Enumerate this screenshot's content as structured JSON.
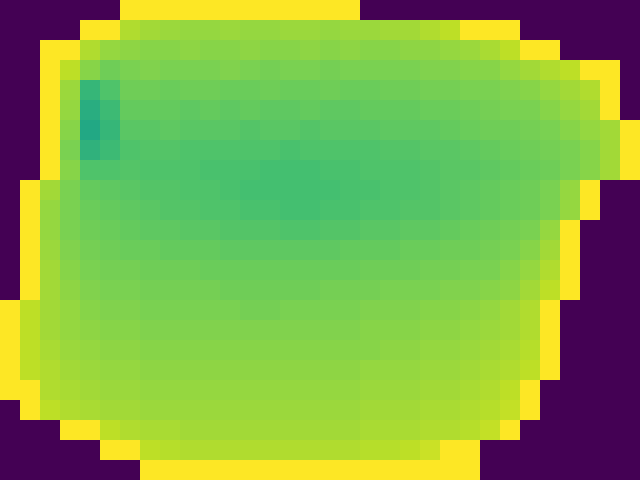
{
  "chart_data": {
    "type": "heatmap",
    "tick_labels": false,
    "zlim": [
      0,
      100
    ],
    "cells": [
      [
        0,
        0,
        0,
        0,
        0,
        0,
        100,
        100,
        100,
        100,
        100,
        100,
        100,
        100,
        100,
        100,
        100,
        100,
        0,
        0,
        0,
        0,
        0,
        0,
        0,
        0,
        0,
        0,
        0,
        0,
        0,
        0
      ],
      [
        0,
        0,
        0,
        0,
        100,
        100,
        88,
        86,
        85,
        84,
        84,
        85,
        84,
        84,
        85,
        85,
        84,
        85,
        85,
        86,
        86,
        88,
        90,
        100,
        100,
        100,
        0,
        0,
        0,
        0,
        0,
        0
      ],
      [
        0,
        0,
        100,
        100,
        88,
        84,
        83,
        82,
        82,
        83,
        82,
        82,
        83,
        82,
        82,
        83,
        82,
        83,
        82,
        82,
        83,
        83,
        84,
        85,
        87,
        90,
        100,
        100,
        0,
        0,
        0,
        0
      ],
      [
        0,
        0,
        100,
        90,
        82,
        78,
        80,
        81,
        80,
        80,
        80,
        81,
        80,
        79,
        80,
        80,
        79,
        80,
        80,
        80,
        80,
        81,
        81,
        82,
        82,
        84,
        86,
        88,
        90,
        100,
        100,
        0
      ],
      [
        0,
        0,
        100,
        85,
        66,
        72,
        78,
        78,
        77,
        78,
        78,
        77,
        77,
        78,
        77,
        77,
        78,
        77,
        77,
        78,
        78,
        79,
        79,
        80,
        80,
        81,
        82,
        84,
        86,
        88,
        100,
        0
      ],
      [
        0,
        0,
        100,
        84,
        62,
        68,
        76,
        76,
        76,
        75,
        76,
        75,
        76,
        75,
        75,
        76,
        75,
        75,
        76,
        76,
        76,
        77,
        77,
        78,
        79,
        80,
        80,
        82,
        84,
        86,
        100,
        0
      ],
      [
        0,
        0,
        100,
        82,
        60,
        66,
        74,
        74,
        75,
        74,
        74,
        74,
        73,
        74,
        74,
        73,
        74,
        74,
        74,
        75,
        75,
        75,
        76,
        77,
        78,
        78,
        79,
        80,
        82,
        84,
        86,
        100
      ],
      [
        0,
        0,
        100,
        80,
        64,
        68,
        72,
        73,
        73,
        72,
        72,
        72,
        72,
        72,
        71,
        72,
        72,
        72,
        72,
        73,
        73,
        74,
        74,
        75,
        76,
        77,
        78,
        79,
        80,
        82,
        86,
        100
      ],
      [
        0,
        0,
        100,
        82,
        72,
        72,
        73,
        72,
        72,
        72,
        71,
        71,
        71,
        70,
        70,
        70,
        71,
        71,
        72,
        72,
        72,
        73,
        74,
        74,
        75,
        76,
        77,
        78,
        80,
        82,
        86,
        100
      ],
      [
        0,
        100,
        86,
        80,
        76,
        75,
        74,
        73,
        73,
        72,
        72,
        71,
        70,
        70,
        70,
        70,
        70,
        71,
        71,
        72,
        72,
        73,
        74,
        75,
        76,
        77,
        78,
        80,
        84,
        100,
        0,
        0
      ],
      [
        0,
        100,
        84,
        80,
        77,
        76,
        75,
        74,
        73,
        73,
        72,
        72,
        71,
        71,
        70,
        70,
        71,
        71,
        72,
        72,
        73,
        73,
        74,
        75,
        76,
        77,
        78,
        80,
        84,
        100,
        0,
        0
      ],
      [
        0,
        100,
        84,
        80,
        78,
        77,
        76,
        75,
        75,
        74,
        74,
        73,
        73,
        73,
        72,
        72,
        73,
        73,
        74,
        74,
        75,
        75,
        76,
        77,
        78,
        79,
        80,
        84,
        100,
        0,
        0,
        0
      ],
      [
        0,
        100,
        85,
        81,
        79,
        78,
        77,
        77,
        76,
        76,
        76,
        75,
        75,
        75,
        75,
        75,
        75,
        76,
        76,
        76,
        77,
        77,
        78,
        78,
        79,
        80,
        82,
        86,
        100,
        0,
        0,
        0
      ],
      [
        0,
        100,
        86,
        82,
        80,
        79,
        79,
        78,
        78,
        78,
        77,
        77,
        77,
        77,
        77,
        77,
        77,
        77,
        78,
        78,
        78,
        79,
        79,
        80,
        80,
        82,
        84,
        88,
        100,
        0,
        0,
        0
      ],
      [
        0,
        100,
        86,
        83,
        81,
        80,
        80,
        79,
        79,
        79,
        79,
        78,
        78,
        78,
        78,
        78,
        79,
        79,
        79,
        80,
        80,
        80,
        81,
        81,
        82,
        83,
        86,
        90,
        100,
        0,
        0,
        0
      ],
      [
        100,
        90,
        86,
        84,
        82,
        81,
        81,
        80,
        80,
        80,
        80,
        80,
        79,
        79,
        80,
        80,
        80,
        80,
        81,
        81,
        81,
        82,
        82,
        83,
        84,
        86,
        88,
        100,
        0,
        0,
        0,
        0
      ],
      [
        100,
        90,
        86,
        84,
        83,
        82,
        82,
        81,
        81,
        81,
        81,
        81,
        81,
        81,
        81,
        81,
        81,
        81,
        82,
        82,
        82,
        83,
        83,
        84,
        85,
        86,
        88,
        100,
        0,
        0,
        0,
        0
      ],
      [
        100,
        90,
        87,
        85,
        84,
        83,
        83,
        82,
        82,
        82,
        82,
        82,
        82,
        82,
        82,
        82,
        82,
        82,
        82,
        83,
        83,
        84,
        84,
        85,
        86,
        87,
        89,
        100,
        0,
        0,
        0,
        0
      ],
      [
        100,
        90,
        88,
        86,
        85,
        84,
        84,
        83,
        83,
        83,
        83,
        83,
        83,
        83,
        83,
        83,
        83,
        83,
        84,
        84,
        84,
        85,
        85,
        86,
        87,
        88,
        90,
        100,
        0,
        0,
        0,
        0
      ],
      [
        100,
        100,
        88,
        87,
        86,
        85,
        85,
        84,
        84,
        84,
        84,
        84,
        84,
        84,
        84,
        84,
        84,
        84,
        85,
        85,
        85,
        86,
        86,
        87,
        88,
        90,
        100,
        0,
        0,
        0,
        0,
        0
      ],
      [
        0,
        100,
        90,
        88,
        87,
        86,
        86,
        85,
        85,
        85,
        85,
        85,
        85,
        85,
        85,
        85,
        85,
        85,
        86,
        86,
        86,
        87,
        87,
        88,
        89,
        91,
        100,
        0,
        0,
        0,
        0,
        0
      ],
      [
        0,
        0,
        0,
        100,
        100,
        90,
        88,
        87,
        87,
        86,
        86,
        86,
        86,
        86,
        86,
        86,
        86,
        86,
        87,
        87,
        87,
        88,
        88,
        89,
        91,
        100,
        0,
        0,
        0,
        0,
        0,
        0
      ],
      [
        0,
        0,
        0,
        0,
        0,
        100,
        100,
        90,
        89,
        88,
        88,
        88,
        88,
        88,
        88,
        88,
        88,
        88,
        89,
        89,
        90,
        92,
        100,
        100,
        0,
        0,
        0,
        0,
        0,
        0,
        0,
        0
      ],
      [
        0,
        0,
        0,
        0,
        0,
        0,
        0,
        100,
        100,
        100,
        100,
        100,
        100,
        100,
        100,
        100,
        100,
        100,
        100,
        100,
        100,
        100,
        100,
        100,
        0,
        0,
        0,
        0,
        0,
        0,
        0,
        0
      ]
    ]
  }
}
